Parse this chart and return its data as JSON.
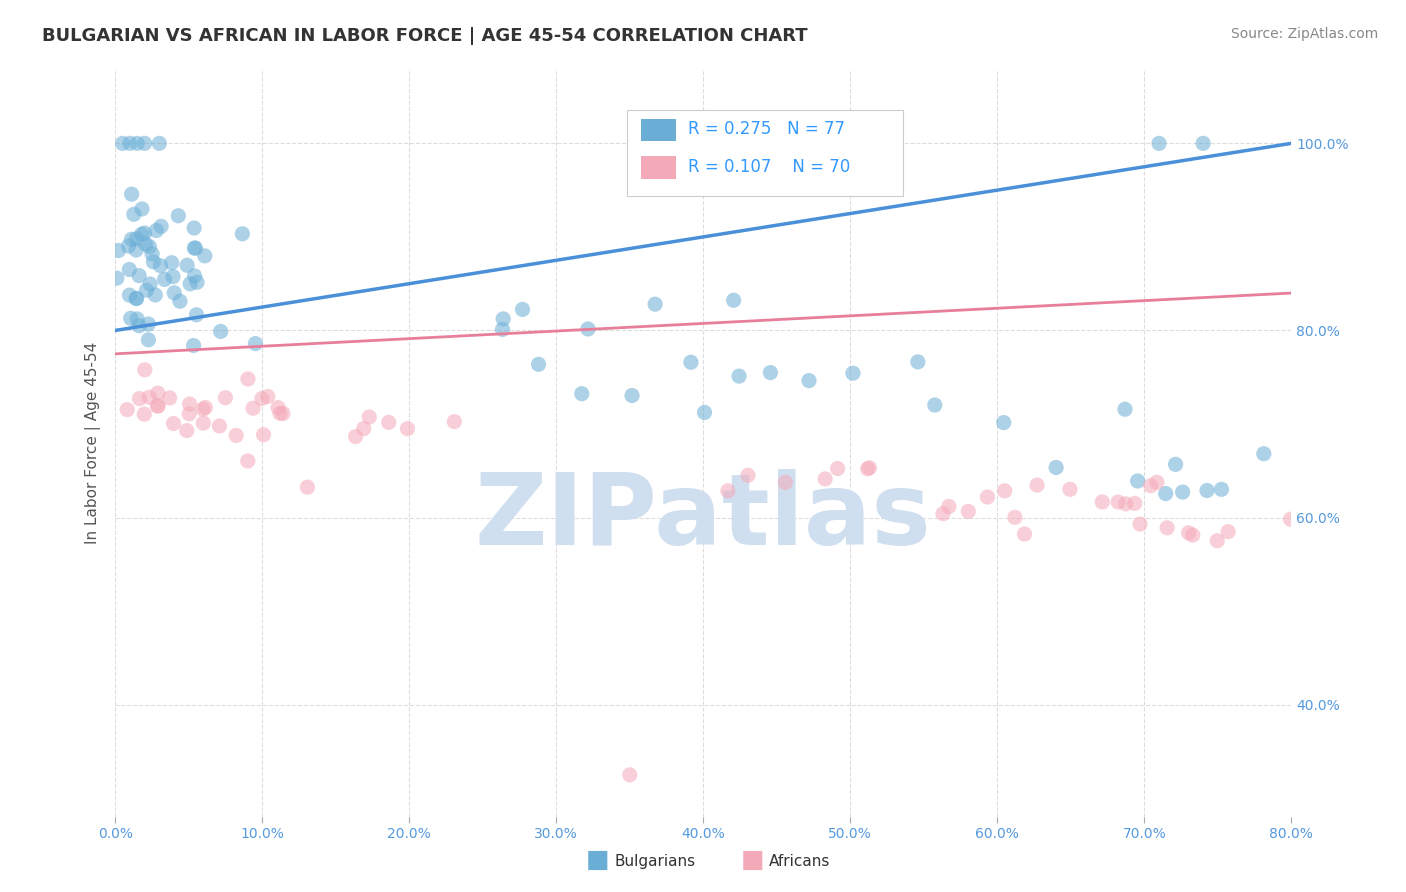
{
  "title": "BULGARIAN VS AFRICAN IN LABOR FORCE | AGE 45-54 CORRELATION CHART",
  "source_text": "Source: ZipAtlas.com",
  "ylabel": "In Labor Force | Age 45-54",
  "xlim": [
    0.0,
    0.8
  ],
  "ylim": [
    0.28,
    1.08
  ],
  "xticks": [
    0.0,
    0.1,
    0.2,
    0.3,
    0.4,
    0.5,
    0.6,
    0.7,
    0.8
  ],
  "ytick_vals": [
    0.4,
    0.6,
    0.8,
    1.0
  ],
  "ytick_labels_right": [
    "40.0%",
    "60.0%",
    "80.0%",
    "100.0%"
  ],
  "R_bulgarian": 0.275,
  "N_bulgarian": 77,
  "R_african": 0.107,
  "N_african": 70,
  "bulgarian_color": "#6aaed6",
  "african_color": "#f4a9b8",
  "bulgarian_line_color": "#4a90d9",
  "african_line_color": "#e87f9a",
  "watermark": "ZIPatlas",
  "watermark_color": "#d0dff0",
  "background_color": "#ffffff",
  "grid_color": "#dddddd",
  "title_color": "#333333",
  "axis_label_color": "#555555",
  "legend_R_color": "#3399ff",
  "scatter_alpha": 0.55,
  "scatter_size": 120,
  "bulgarian_line_x": [
    0.0,
    0.8
  ],
  "bulgarian_line_y": [
    0.8,
    1.0
  ],
  "african_line_x": [
    0.0,
    0.8
  ],
  "african_line_y": [
    0.775,
    0.84
  ]
}
